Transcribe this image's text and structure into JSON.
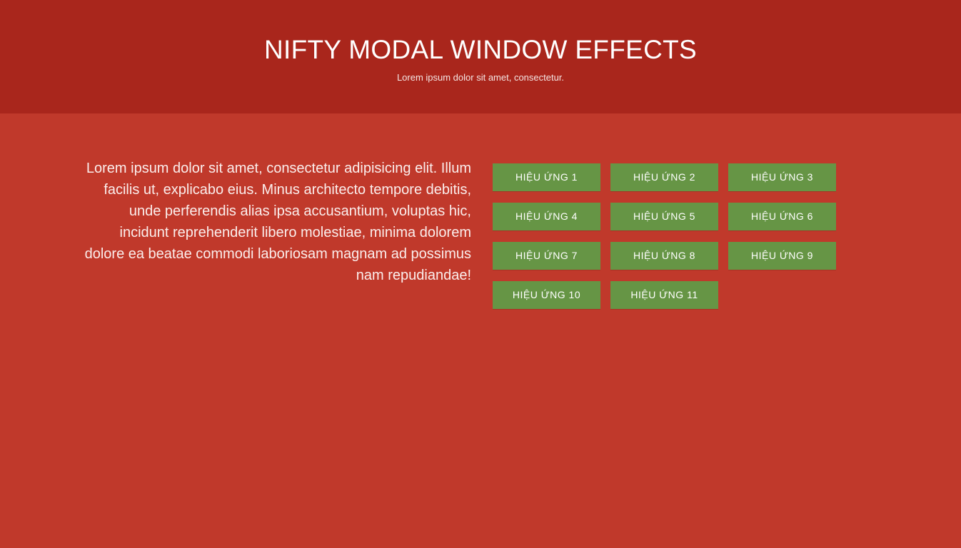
{
  "header": {
    "title": "NIFTY MODAL WINDOW EFFECTS",
    "subtitle": "Lorem ipsum dolor sit amet, consectetur."
  },
  "main": {
    "intro_text": "Lorem ipsum dolor sit amet, consectetur adipisicing elit. Illum facilis ut, explicabo eius. Minus architecto tempore debitis, unde perferendis alias ipsa accusantium, voluptas hic, incidunt reprehenderit libero molestiae, minima dolorem dolore ea beatae commodi laboriosam magnam ad possimus nam repudiandae!",
    "buttons": [
      "HIỆU ỨNG 1",
      "HIỆU ỨNG 2",
      "HIỆU ỨNG 3",
      "HIỆU ỨNG 4",
      "HIỆU ỨNG 5",
      "HIỆU ỨNG 6",
      "HIỆU ỨNG 7",
      "HIỆU ỨNG 8",
      "HIỆU ỨNG 9",
      "HIỆU ỨNG 10",
      "HIỆU ỨNG 11"
    ]
  },
  "colors": {
    "header_bg": "#a9261c",
    "page_bg": "#c0392b",
    "button_bg": "#669545",
    "text": "#ffffff"
  }
}
